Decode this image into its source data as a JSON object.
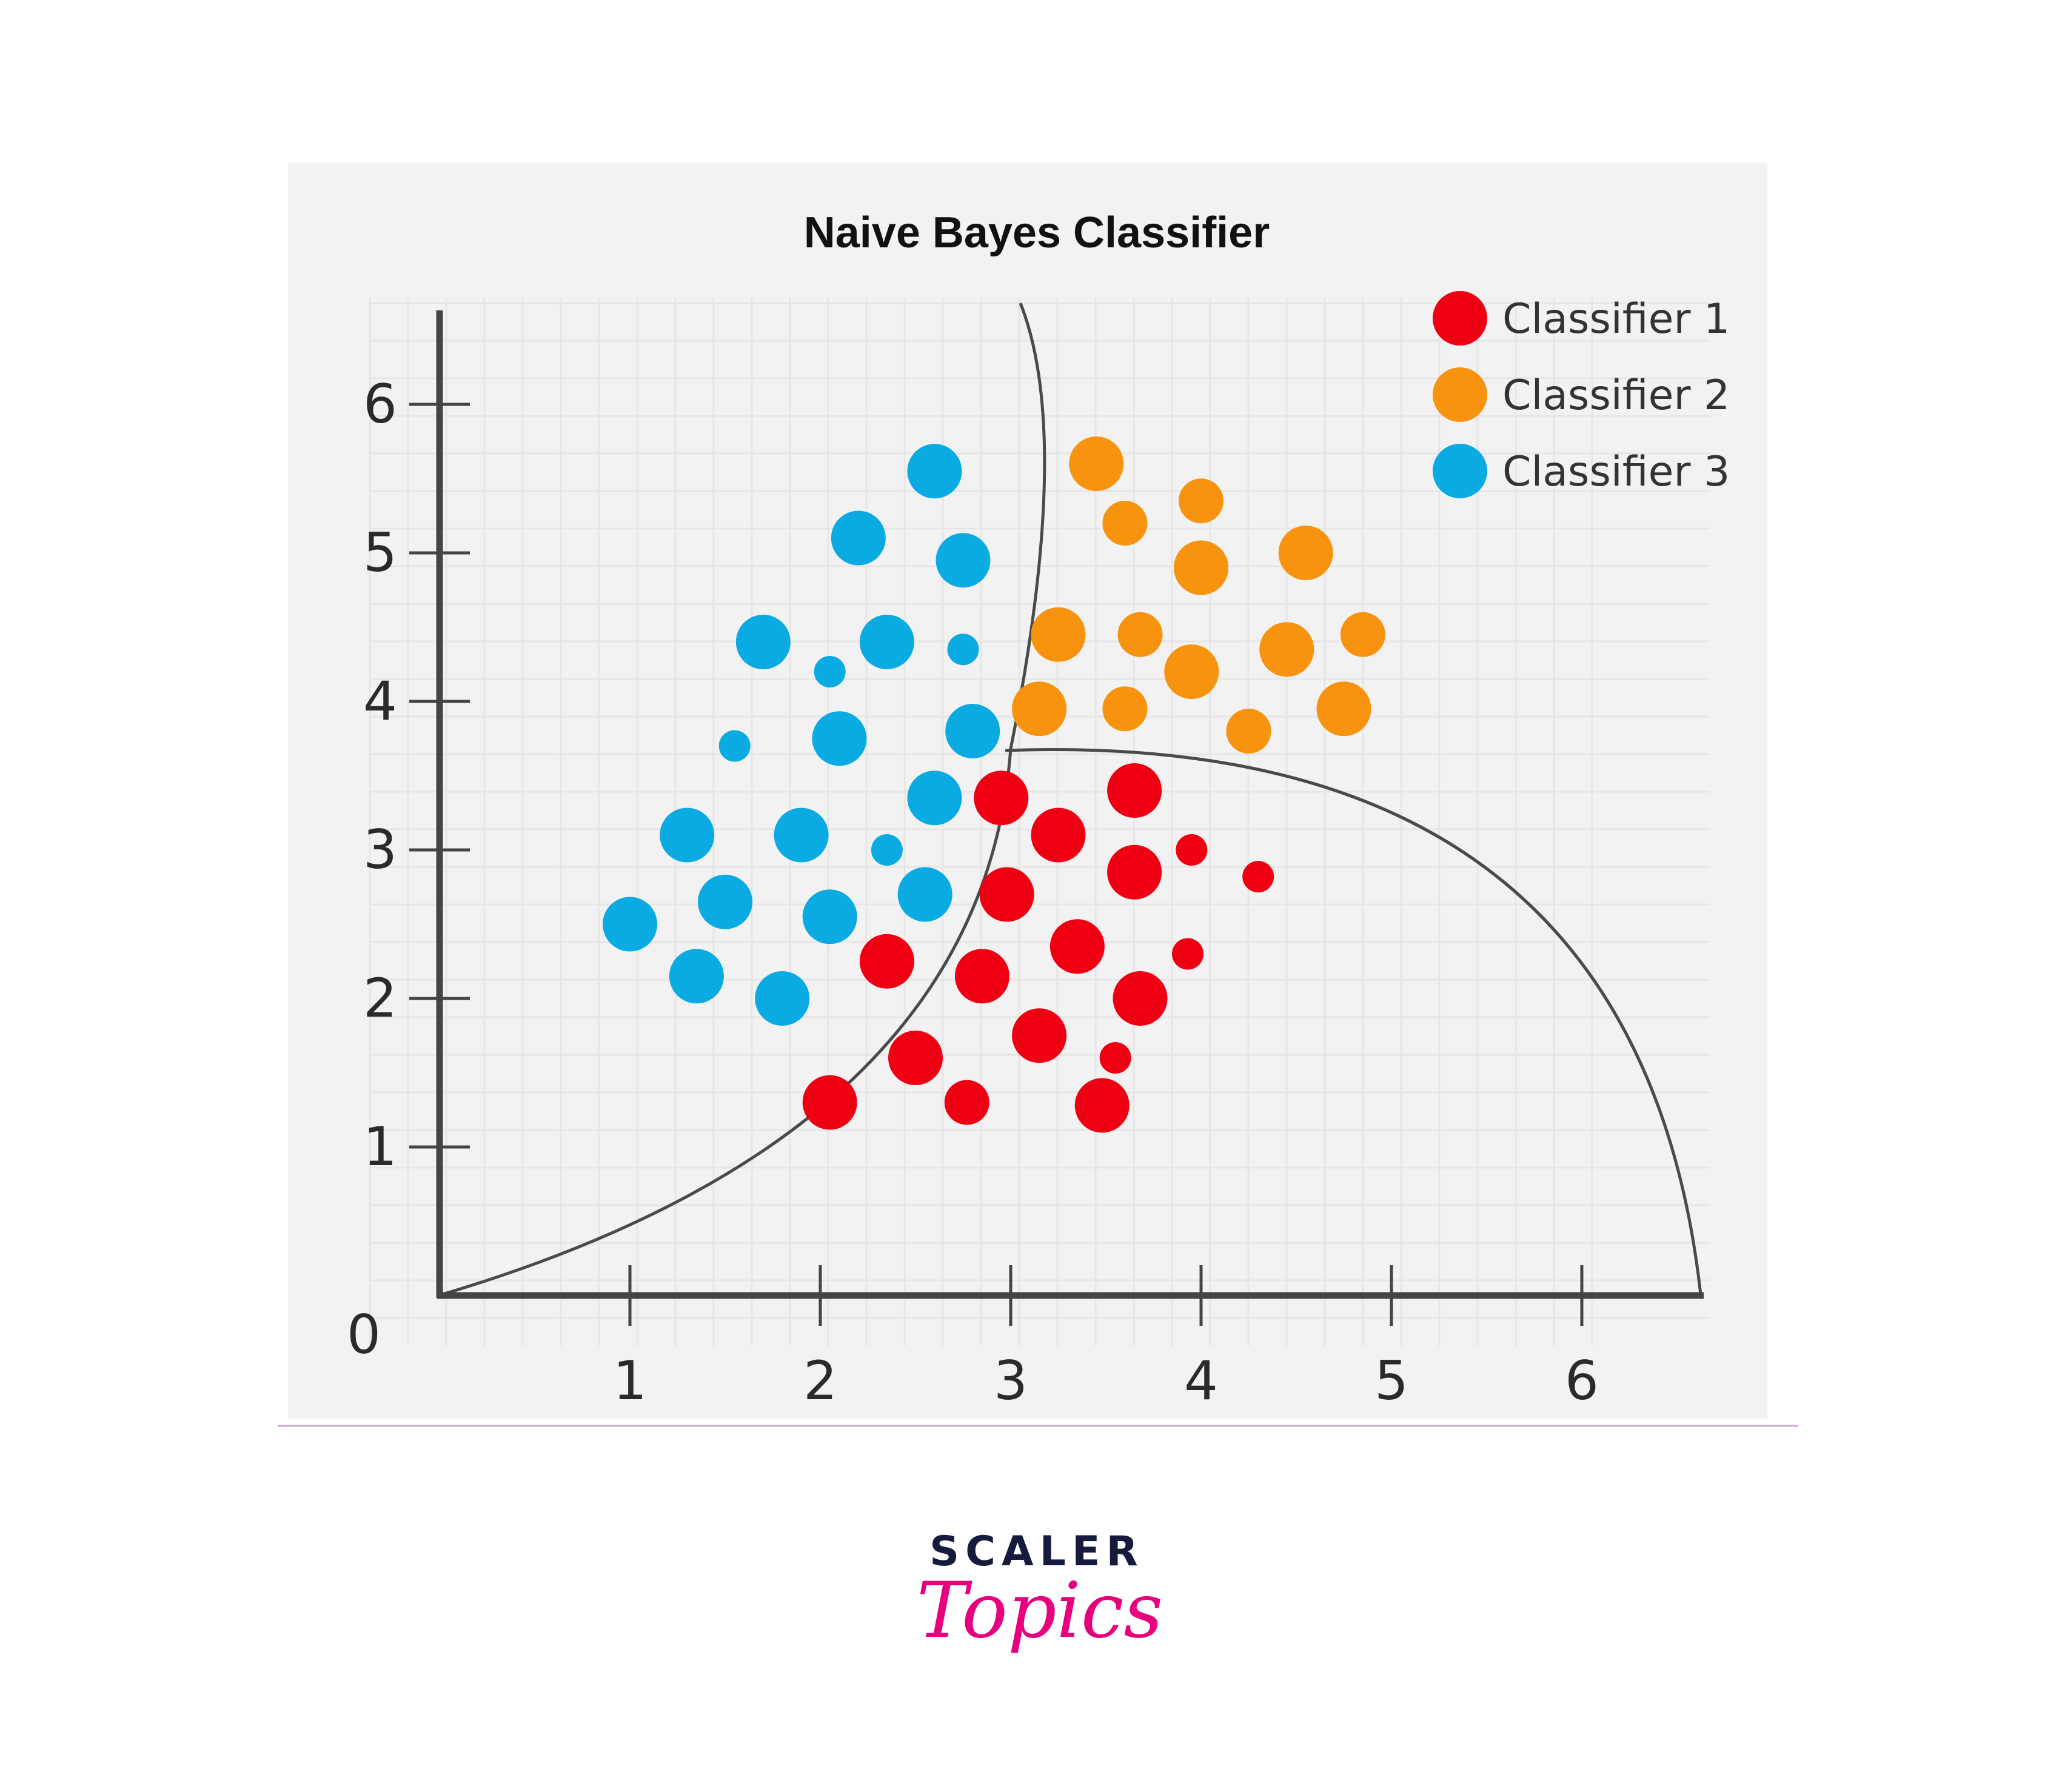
{
  "chart_data": {
    "type": "scatter",
    "title": "Naive Bayes Classifier",
    "xlabel": "",
    "ylabel": "",
    "origin_label": "0",
    "xlim": [
      0,
      6.6
    ],
    "ylim": [
      0,
      6.6
    ],
    "xticks": [
      "1",
      "2",
      "3",
      "4",
      "5",
      "6"
    ],
    "yticks": [
      "1",
      "2",
      "3",
      "4",
      "5",
      "6"
    ],
    "grid": true,
    "legend_position": "top-right",
    "series": [
      {
        "name": "Classifier 1",
        "color": "#ee0012",
        "points": [
          {
            "x": 2.95,
            "y": 3.35,
            "size": "large"
          },
          {
            "x": 3.65,
            "y": 3.4,
            "size": "large"
          },
          {
            "x": 3.25,
            "y": 3.1,
            "size": "large"
          },
          {
            "x": 3.95,
            "y": 3.0,
            "size": "small"
          },
          {
            "x": 2.98,
            "y": 2.7,
            "size": "large"
          },
          {
            "x": 3.65,
            "y": 2.85,
            "size": "large"
          },
          {
            "x": 4.3,
            "y": 2.82,
            "size": "small"
          },
          {
            "x": 2.35,
            "y": 2.25,
            "size": "large"
          },
          {
            "x": 3.35,
            "y": 2.35,
            "size": "large"
          },
          {
            "x": 3.93,
            "y": 2.3,
            "size": "small"
          },
          {
            "x": 2.85,
            "y": 2.15,
            "size": "large"
          },
          {
            "x": 3.68,
            "y": 2.0,
            "size": "large"
          },
          {
            "x": 3.15,
            "y": 1.75,
            "size": "large"
          },
          {
            "x": 2.5,
            "y": 1.6,
            "size": "large"
          },
          {
            "x": 3.55,
            "y": 1.6,
            "size": "small"
          },
          {
            "x": 2.05,
            "y": 1.3,
            "size": "large"
          },
          {
            "x": 2.77,
            "y": 1.3,
            "size": "medium"
          },
          {
            "x": 3.48,
            "y": 1.28,
            "size": "large"
          }
        ]
      },
      {
        "name": "Classifier 2",
        "color": "#f7930f",
        "points": [
          {
            "x": 3.45,
            "y": 5.6,
            "size": "large"
          },
          {
            "x": 3.6,
            "y": 5.2,
            "size": "medium"
          },
          {
            "x": 4.0,
            "y": 5.35,
            "size": "medium"
          },
          {
            "x": 4.55,
            "y": 5.0,
            "size": "large"
          },
          {
            "x": 4.0,
            "y": 4.9,
            "size": "large"
          },
          {
            "x": 3.25,
            "y": 4.45,
            "size": "large"
          },
          {
            "x": 3.68,
            "y": 4.45,
            "size": "medium"
          },
          {
            "x": 3.95,
            "y": 4.2,
            "size": "large"
          },
          {
            "x": 4.45,
            "y": 4.35,
            "size": "large"
          },
          {
            "x": 4.85,
            "y": 4.45,
            "size": "medium"
          },
          {
            "x": 3.15,
            "y": 3.95,
            "size": "large"
          },
          {
            "x": 3.6,
            "y": 3.95,
            "size": "medium"
          },
          {
            "x": 4.25,
            "y": 3.8,
            "size": "medium"
          },
          {
            "x": 4.75,
            "y": 3.95,
            "size": "large"
          }
        ]
      },
      {
        "name": "Classifier 3",
        "color": "#0aaae2",
        "points": [
          {
            "x": 2.6,
            "y": 5.55,
            "size": "large"
          },
          {
            "x": 2.2,
            "y": 5.1,
            "size": "large"
          },
          {
            "x": 2.75,
            "y": 4.95,
            "size": "large"
          },
          {
            "x": 1.7,
            "y": 4.4,
            "size": "large"
          },
          {
            "x": 2.35,
            "y": 4.4,
            "size": "large"
          },
          {
            "x": 2.75,
            "y": 4.35,
            "size": "small"
          },
          {
            "x": 2.05,
            "y": 4.2,
            "size": "small"
          },
          {
            "x": 2.8,
            "y": 3.8,
            "size": "large"
          },
          {
            "x": 2.1,
            "y": 3.75,
            "size": "large"
          },
          {
            "x": 1.55,
            "y": 3.7,
            "size": "small"
          },
          {
            "x": 2.6,
            "y": 3.35,
            "size": "large"
          },
          {
            "x": 1.3,
            "y": 3.1,
            "size": "large"
          },
          {
            "x": 1.9,
            "y": 3.1,
            "size": "large"
          },
          {
            "x": 2.35,
            "y": 3.0,
            "size": "small"
          },
          {
            "x": 1.5,
            "y": 2.65,
            "size": "large"
          },
          {
            "x": 2.55,
            "y": 2.7,
            "size": "large"
          },
          {
            "x": 1.0,
            "y": 2.5,
            "size": "large"
          },
          {
            "x": 2.05,
            "y": 2.55,
            "size": "large"
          },
          {
            "x": 1.35,
            "y": 2.15,
            "size": "large"
          },
          {
            "x": 1.8,
            "y": 2.0,
            "size": "large"
          }
        ]
      }
    ]
  },
  "footer": {
    "brand_top": "SCALER",
    "brand_bottom": "Topics",
    "brand_top_color": "#161b3d",
    "brand_bottom_color": "#e7007d"
  }
}
